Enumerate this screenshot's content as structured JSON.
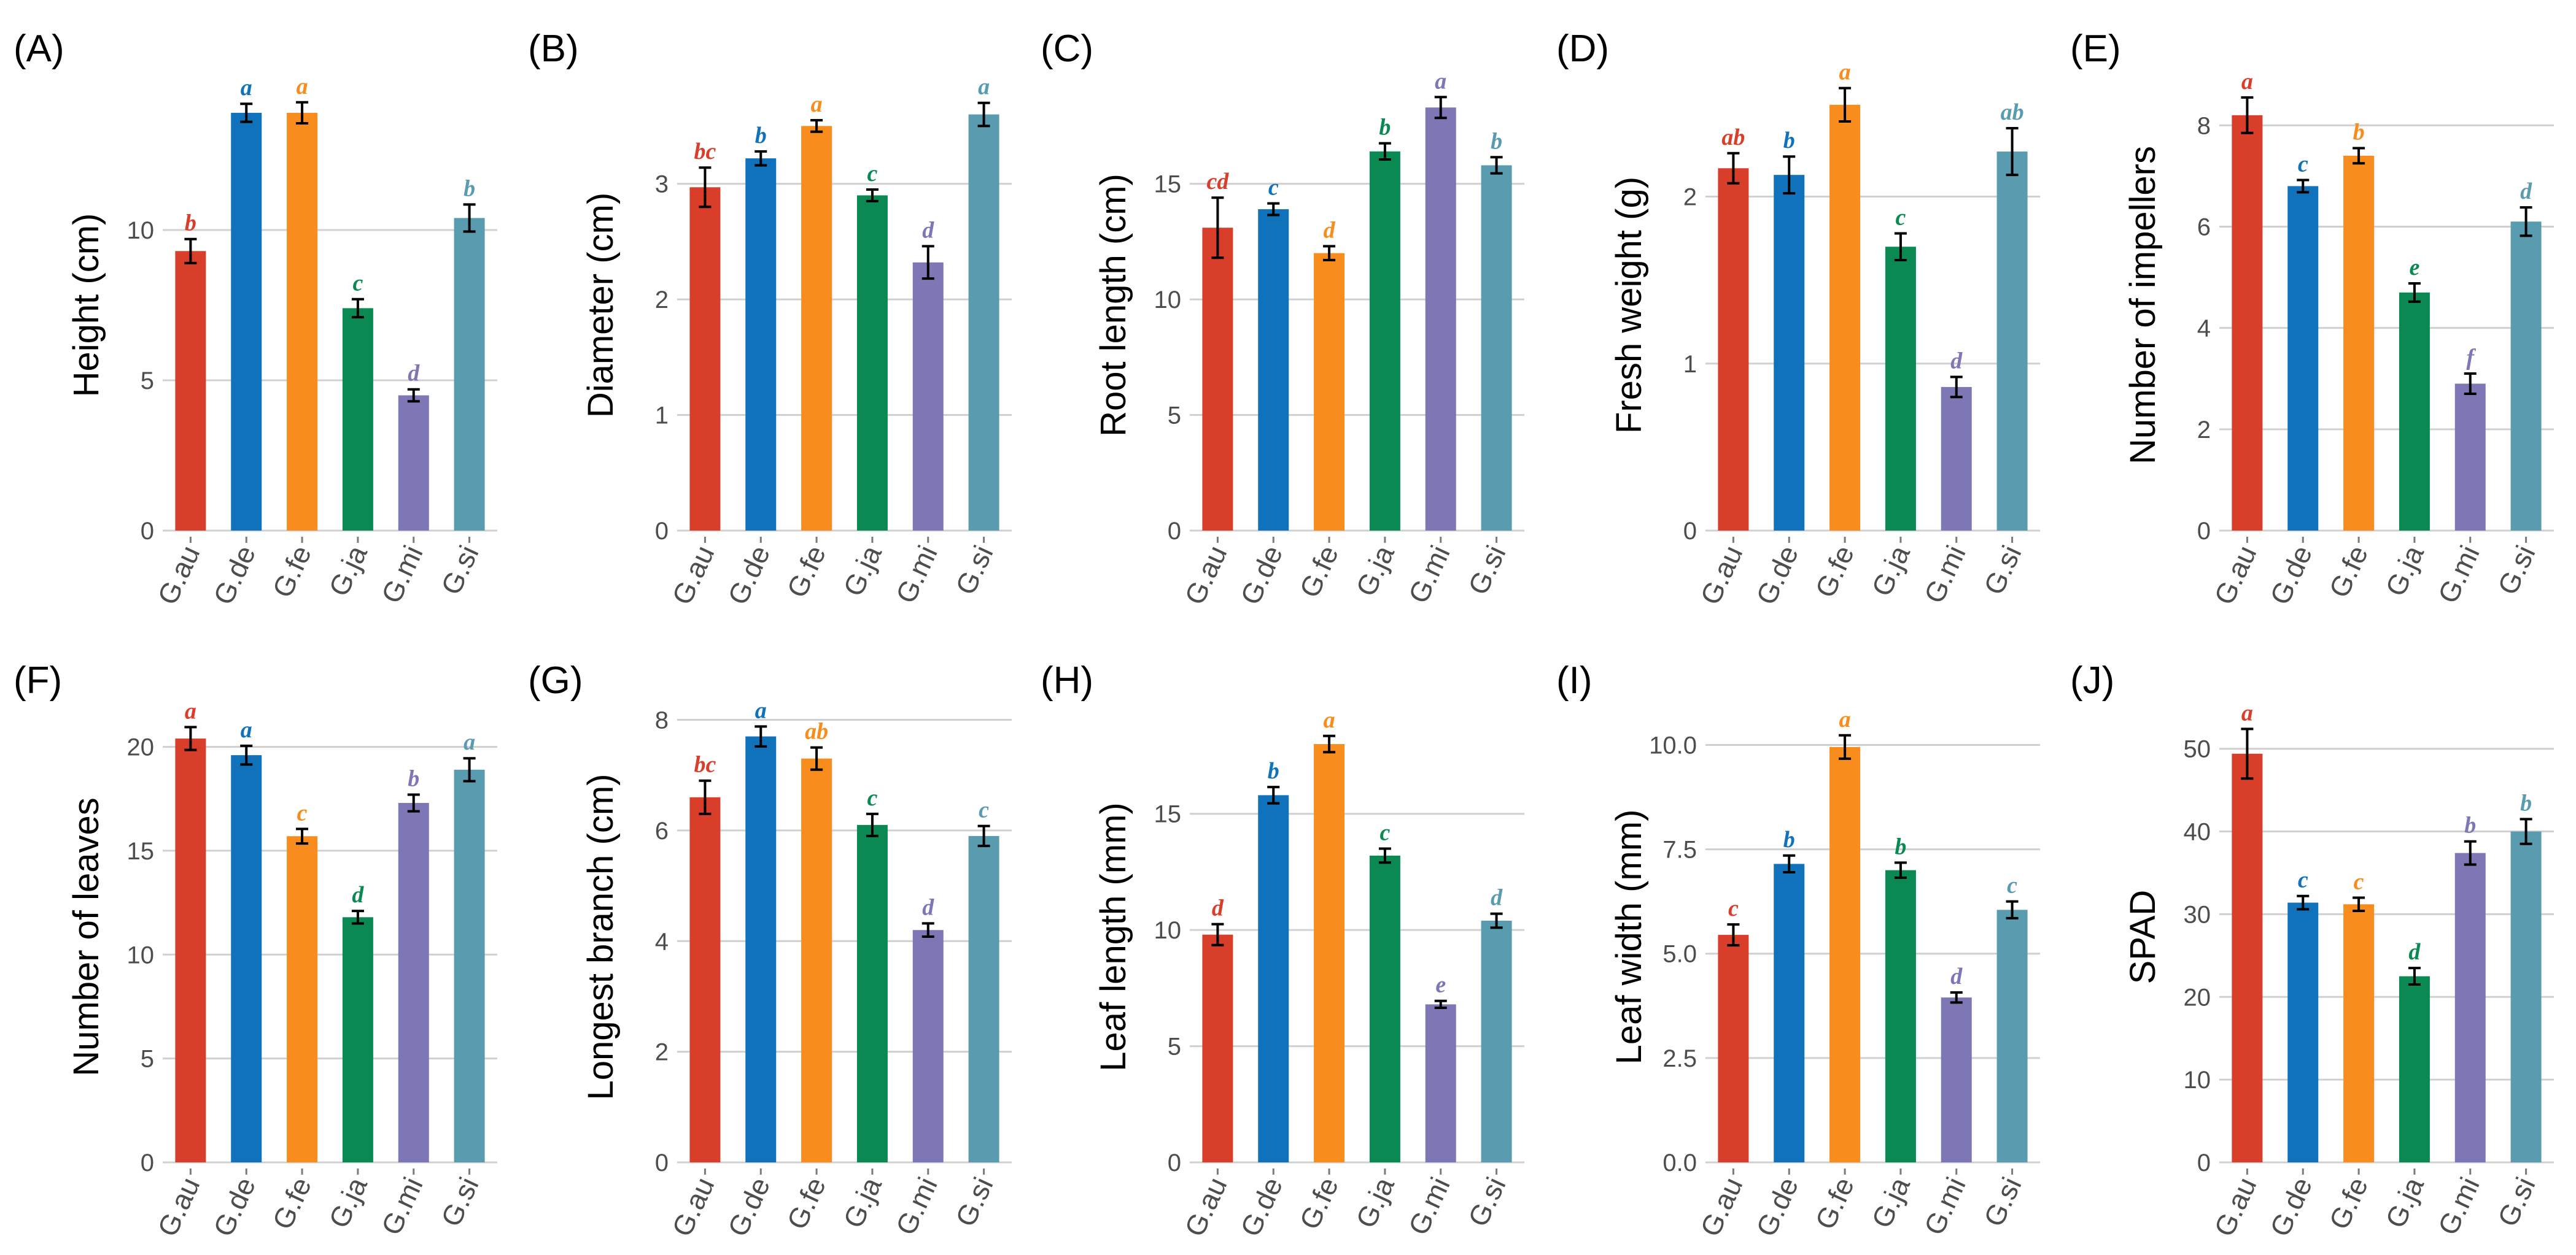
{
  "figure": {
    "title": ""
  },
  "colors": {
    "G.au": "#D93E2A",
    "G.de": "#0F72BA",
    "G.fe": "#F88C1C",
    "G.ja": "#0A8A52",
    "G.mi": "#7E77B5",
    "G.si": "#5A9CAF"
  },
  "chart_data": [
    {
      "panel": "(A)",
      "type": "bar",
      "title": "",
      "xlabel": "",
      "ylabel": "Height (cm)",
      "categories": [
        "G.au",
        "G.de",
        "G.fe",
        "G.ja",
        "G.mi",
        "G.si"
      ],
      "values": [
        9.3,
        13.9,
        13.9,
        7.4,
        4.5,
        10.4
      ],
      "errors": [
        0.4,
        0.3,
        0.35,
        0.3,
        0.2,
        0.45
      ],
      "letters": [
        "b",
        "a",
        "a",
        "c",
        "d",
        "b"
      ],
      "ylim": [
        0,
        15
      ],
      "yticks": [
        0,
        5,
        10
      ],
      "ytick_labels": [
        "0",
        "5",
        "10"
      ]
    },
    {
      "panel": "(B)",
      "type": "bar",
      "title": "",
      "xlabel": "",
      "ylabel": "Diameter (cm)",
      "categories": [
        "G.au",
        "G.de",
        "G.fe",
        "G.ja",
        "G.mi",
        "G.si"
      ],
      "values": [
        2.97,
        3.22,
        3.5,
        2.9,
        2.32,
        3.6
      ],
      "errors": [
        0.17,
        0.06,
        0.05,
        0.05,
        0.14,
        0.1
      ],
      "letters": [
        "bc",
        "b",
        "a",
        "c",
        "d",
        "a"
      ],
      "ylim": [
        0,
        3.9
      ],
      "yticks": [
        0,
        1,
        2,
        3
      ],
      "ytick_labels": [
        "0",
        "1",
        "2",
        "3"
      ]
    },
    {
      "panel": "(C)",
      "type": "bar",
      "title": "",
      "xlabel": "",
      "ylabel": "Root length (cm)",
      "categories": [
        "G.au",
        "G.de",
        "G.fe",
        "G.ja",
        "G.mi",
        "G.si"
      ],
      "values": [
        13.1,
        13.9,
        12.0,
        16.4,
        18.3,
        15.8
      ],
      "errors": [
        1.3,
        0.25,
        0.3,
        0.35,
        0.45,
        0.35
      ],
      "letters": [
        "cd",
        "c",
        "d",
        "b",
        "a",
        "b"
      ],
      "ylim": [
        0,
        19.5
      ],
      "yticks": [
        0,
        5,
        10,
        15
      ],
      "ytick_labels": [
        "0",
        "5",
        "10",
        "15"
      ]
    },
    {
      "panel": "(D)",
      "type": "bar",
      "title": "",
      "xlabel": "",
      "ylabel": "Fresh weight (g)",
      "categories": [
        "G.au",
        "G.de",
        "G.fe",
        "G.ja",
        "G.mi",
        "G.si"
      ],
      "values": [
        2.17,
        2.13,
        2.55,
        1.7,
        0.86,
        2.27
      ],
      "errors": [
        0.09,
        0.11,
        0.1,
        0.08,
        0.06,
        0.14
      ],
      "letters": [
        "ab",
        "b",
        "a",
        "c",
        "d",
        "ab"
      ],
      "ylim": [
        0,
        2.7
      ],
      "yticks": [
        0,
        1,
        2
      ],
      "ytick_labels": [
        "0",
        "1",
        "2"
      ]
    },
    {
      "panel": "(E)",
      "type": "bar",
      "title": "",
      "xlabel": "",
      "ylabel": "Number of impellers",
      "categories": [
        "G.au",
        "G.de",
        "G.fe",
        "G.ja",
        "G.mi",
        "G.si"
      ],
      "values": [
        8.2,
        6.8,
        7.4,
        4.7,
        2.9,
        6.1
      ],
      "errors": [
        0.35,
        0.12,
        0.15,
        0.18,
        0.2,
        0.28
      ],
      "letters": [
        "a",
        "c",
        "b",
        "e",
        "f",
        "d"
      ],
      "ylim": [
        0,
        8.9
      ],
      "yticks": [
        0,
        2,
        4,
        6,
        8
      ],
      "ytick_labels": [
        "0",
        "2",
        "4",
        "6",
        "8"
      ]
    },
    {
      "panel": "(F)",
      "type": "bar",
      "title": "",
      "xlabel": "",
      "ylabel": "Number of leaves",
      "categories": [
        "G.au",
        "G.de",
        "G.fe",
        "G.ja",
        "G.mi",
        "G.si"
      ],
      "values": [
        20.4,
        19.6,
        15.7,
        11.8,
        17.3,
        18.9
      ],
      "errors": [
        0.55,
        0.45,
        0.35,
        0.3,
        0.4,
        0.55
      ],
      "letters": [
        "a",
        "a",
        "c",
        "d",
        "b",
        "a"
      ],
      "ylim": [
        0,
        21.7
      ],
      "yticks": [
        0,
        5,
        10,
        15,
        20
      ],
      "ytick_labels": [
        "0",
        "5",
        "10",
        "15",
        "20"
      ]
    },
    {
      "panel": "(G)",
      "type": "bar",
      "title": "",
      "xlabel": "",
      "ylabel": "Longest branch (cm)",
      "categories": [
        "G.au",
        "G.de",
        "G.fe",
        "G.ja",
        "G.mi",
        "G.si"
      ],
      "values": [
        6.6,
        7.7,
        7.3,
        6.1,
        4.2,
        5.9
      ],
      "errors": [
        0.3,
        0.18,
        0.2,
        0.2,
        0.12,
        0.18
      ],
      "letters": [
        "bc",
        "a",
        "ab",
        "c",
        "d",
        "c"
      ],
      "ylim": [
        0,
        8.15
      ],
      "yticks": [
        0,
        2,
        4,
        6,
        8
      ],
      "ytick_labels": [
        "0",
        "2",
        "4",
        "6",
        "8"
      ]
    },
    {
      "panel": "(H)",
      "type": "bar",
      "title": "",
      "xlabel": "",
      "ylabel": "Leaf length (mm)",
      "categories": [
        "G.au",
        "G.de",
        "G.fe",
        "G.ja",
        "G.mi",
        "G.si"
      ],
      "values": [
        9.8,
        15.8,
        18.0,
        13.2,
        6.8,
        10.4
      ],
      "errors": [
        0.45,
        0.35,
        0.35,
        0.3,
        0.15,
        0.3
      ],
      "letters": [
        "d",
        "b",
        "a",
        "c",
        "e",
        "d"
      ],
      "ylim": [
        0,
        19.4
      ],
      "yticks": [
        0,
        5,
        10,
        15
      ],
      "ytick_labels": [
        "0",
        "5",
        "10",
        "15"
      ]
    },
    {
      "panel": "(I)",
      "type": "bar",
      "title": "",
      "xlabel": "",
      "ylabel": "Leaf width (mm)",
      "categories": [
        "G.au",
        "G.de",
        "G.fe",
        "G.ja",
        "G.mi",
        "G.si"
      ],
      "values": [
        5.45,
        7.15,
        9.95,
        7.0,
        3.95,
        6.05
      ],
      "errors": [
        0.25,
        0.2,
        0.28,
        0.18,
        0.12,
        0.2
      ],
      "letters": [
        "c",
        "b",
        "a",
        "b",
        "d",
        "c"
      ],
      "ylim": [
        0,
        10.8
      ],
      "yticks": [
        0,
        2.5,
        5,
        7.5,
        10
      ],
      "ytick_labels": [
        "0.0",
        "2.5",
        "5.0",
        "7.5",
        "10.0"
      ]
    },
    {
      "panel": "(J)",
      "type": "bar",
      "title": "",
      "xlabel": "",
      "ylabel": "SPAD",
      "categories": [
        "G.au",
        "G.de",
        "G.fe",
        "G.ja",
        "G.mi",
        "G.si"
      ],
      "values": [
        49.4,
        31.4,
        31.2,
        22.5,
        37.4,
        40.0
      ],
      "errors": [
        3.0,
        0.8,
        0.8,
        1.0,
        1.4,
        1.5
      ],
      "letters": [
        "a",
        "c",
        "c",
        "d",
        "b",
        "b"
      ],
      "ylim": [
        0,
        54.5
      ],
      "yticks": [
        0,
        10,
        20,
        30,
        40,
        50
      ],
      "ytick_labels": [
        "0",
        "10",
        "20",
        "30",
        "40",
        "50"
      ]
    }
  ]
}
